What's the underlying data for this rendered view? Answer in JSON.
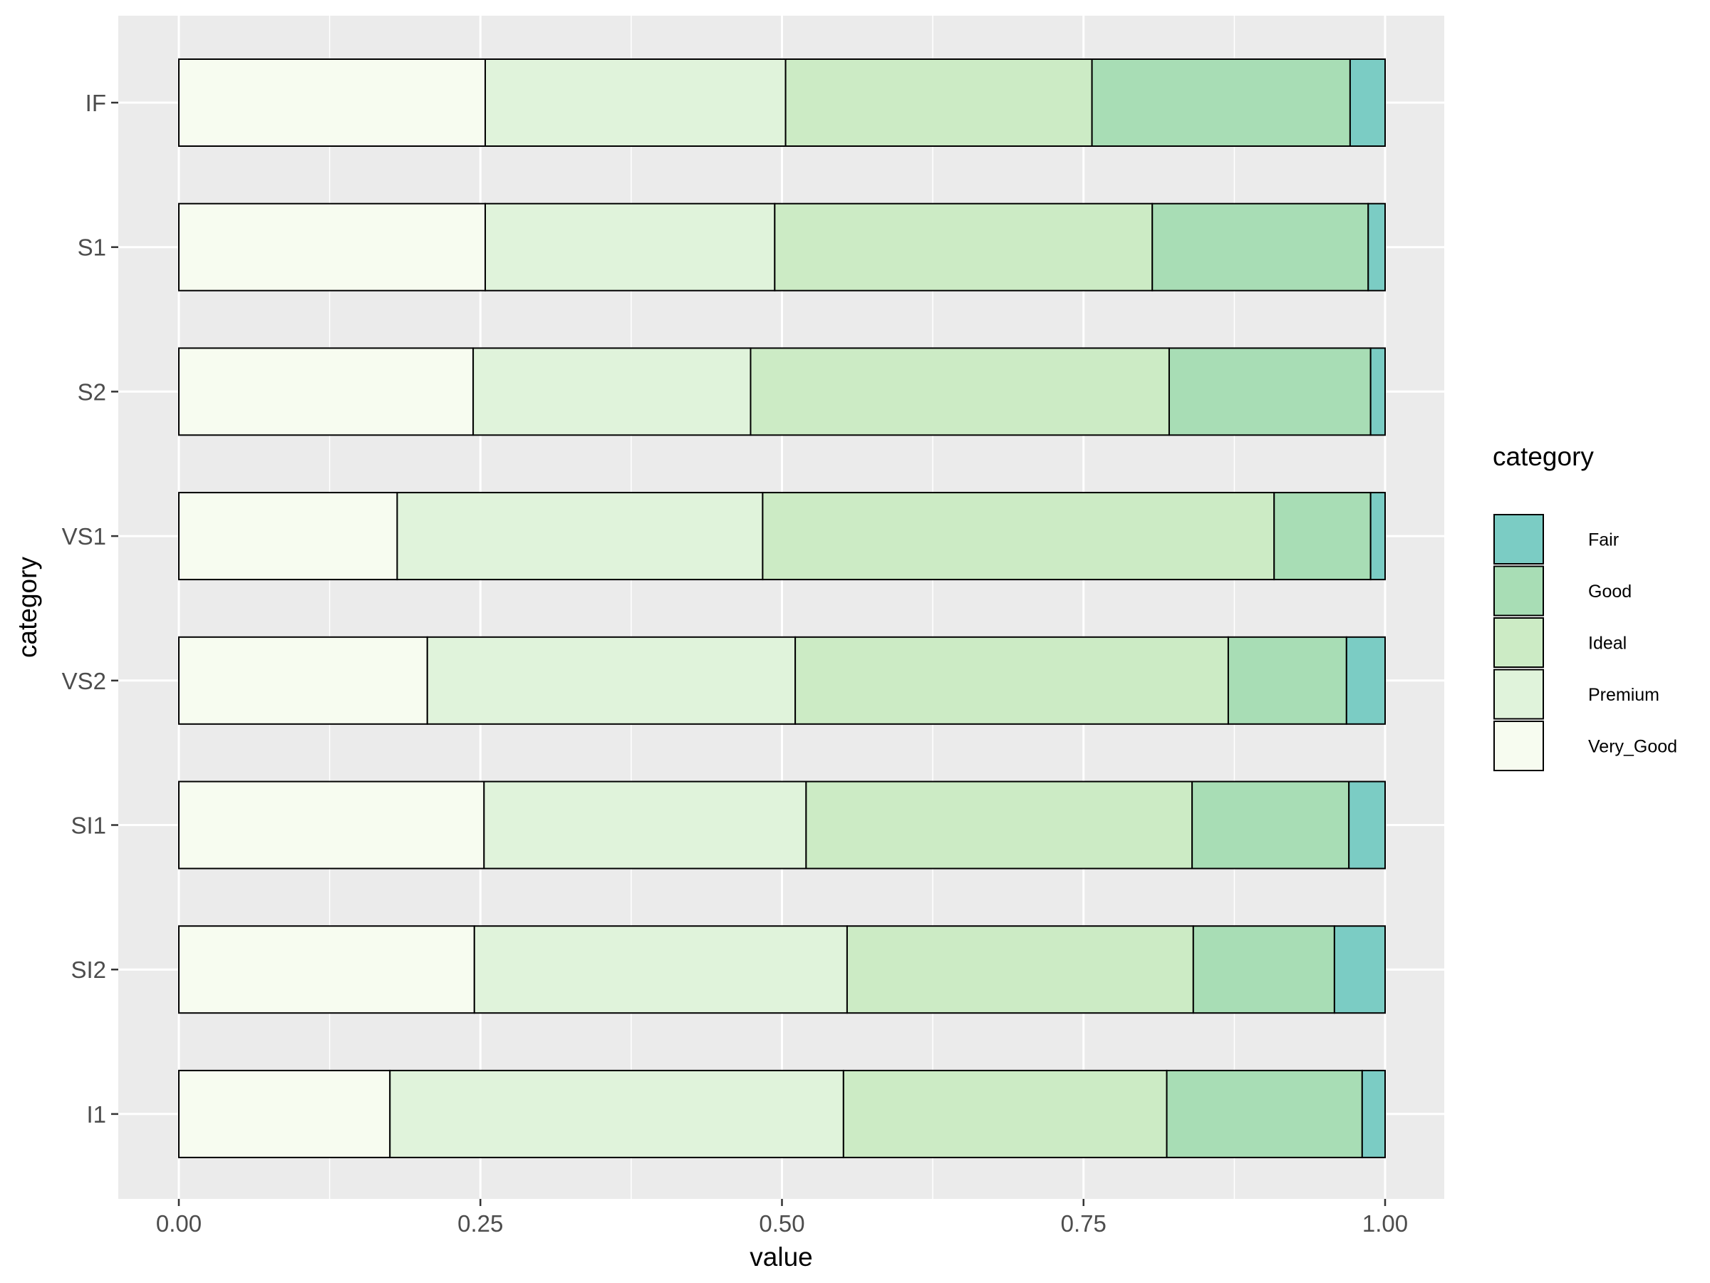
{
  "chart_data": {
    "type": "bar",
    "orientation": "horizontal",
    "stacked": true,
    "categories": [
      "IF",
      "S1",
      "S2",
      "VS1",
      "VS2",
      "SI1",
      "SI2",
      "I1"
    ],
    "series": [
      {
        "name": "Very_Good",
        "color": "#f7fcf0",
        "values": [
          0.254,
          0.254,
          0.244,
          0.181,
          0.206,
          0.253,
          0.245,
          0.175
        ]
      },
      {
        "name": "Premium",
        "color": "#e0f3db",
        "values": [
          0.249,
          0.24,
          0.23,
          0.303,
          0.305,
          0.267,
          0.309,
          0.376
        ]
      },
      {
        "name": "Ideal",
        "color": "#ccebc5",
        "values": [
          0.254,
          0.313,
          0.347,
          0.424,
          0.359,
          0.32,
          0.287,
          0.268
        ]
      },
      {
        "name": "Good",
        "color": "#a8ddb5",
        "values": [
          0.214,
          0.179,
          0.167,
          0.08,
          0.098,
          0.13,
          0.117,
          0.162
        ]
      },
      {
        "name": "Fair",
        "color": "#7bccc4",
        "values": [
          0.029,
          0.014,
          0.012,
          0.012,
          0.032,
          0.03,
          0.042,
          0.019
        ]
      }
    ],
    "stack_order": [
      "Very_Good",
      "Premium",
      "Ideal",
      "Good",
      "Fair"
    ],
    "legend_order": [
      "Fair",
      "Good",
      "Ideal",
      "Premium",
      "Very_Good"
    ],
    "xlabel": "value",
    "ylabel": "category",
    "legend_title": "category",
    "legend_position": "right",
    "xlim": [
      0,
      1
    ],
    "xticks": [
      "0.00",
      "0.25",
      "0.50",
      "0.75",
      "1.00"
    ],
    "grid": true,
    "panel_background": "#ebebeb"
  }
}
